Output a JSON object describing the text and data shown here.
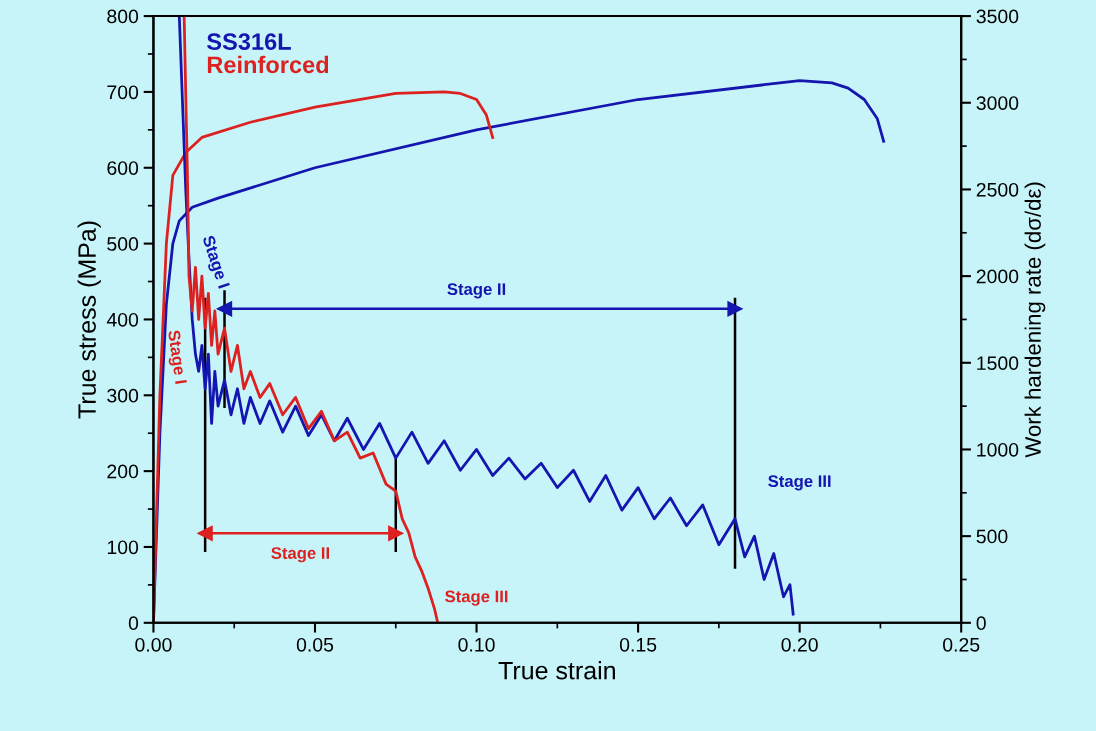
{
  "chart_data": {
    "type": "line",
    "xlabel": "True strain",
    "ylabel": "True stress (MPa)",
    "y2label": "Work hardening rate (dσ/dε)",
    "xlim": [
      0,
      0.25
    ],
    "xticks": [
      {
        "value": 0,
        "label": "0.00"
      },
      {
        "value": 0.05,
        "label": "0.05"
      },
      {
        "value": 0.1,
        "label": "0.10"
      },
      {
        "value": 0.15,
        "label": "0.15"
      },
      {
        "value": 0.2,
        "label": "0.20"
      },
      {
        "value": 0.25,
        "label": "0.25"
      }
    ],
    "ylim": [
      0,
      800
    ],
    "yticks": [
      0,
      100,
      200,
      300,
      400,
      500,
      600,
      700,
      800
    ],
    "y2lim": [
      0,
      3500
    ],
    "y2ticks": [
      0,
      500,
      1000,
      1500,
      2000,
      2500,
      3000,
      3500
    ],
    "legend": "top left",
    "grid": false,
    "series": [
      {
        "name": "SS316L",
        "color": "#1515b0",
        "x": [
          0,
          0.002,
          0.004,
          0.006,
          0.008,
          0.012,
          0.02,
          0.05,
          0.1,
          0.15,
          0.2,
          0.21,
          0.215,
          0.22,
          0.224,
          0.226
        ],
        "values": [
          0,
          250,
          420,
          500,
          530,
          548,
          560,
          600,
          650,
          690,
          715,
          712,
          705,
          690,
          665,
          635
        ]
      },
      {
        "name": "Reinforced",
        "color": "#dd2020",
        "x": [
          0,
          0.002,
          0.004,
          0.006,
          0.01,
          0.015,
          0.03,
          0.05,
          0.075,
          0.09,
          0.095,
          0.1,
          0.103,
          0.105
        ],
        "values": [
          0,
          300,
          500,
          590,
          620,
          640,
          660,
          680,
          698,
          700,
          698,
          690,
          670,
          640
        ]
      },
      {
        "axis": "y2",
        "color": "#1515b0",
        "x": [
          0.008,
          0.009,
          0.01,
          0.011,
          0.012,
          0.013,
          0.014,
          0.015,
          0.016,
          0.017,
          0.018,
          0.019,
          0.02,
          0.022,
          0.024,
          0.026,
          0.028,
          0.03,
          0.033,
          0.036,
          0.04,
          0.044,
          0.048,
          0.052,
          0.056,
          0.06,
          0.065,
          0.07,
          0.075,
          0.08,
          0.085,
          0.09,
          0.095,
          0.1,
          0.105,
          0.11,
          0.115,
          0.12,
          0.125,
          0.13,
          0.135,
          0.14,
          0.145,
          0.15,
          0.155,
          0.16,
          0.165,
          0.17,
          0.175,
          0.18,
          0.183,
          0.186,
          0.189,
          0.192,
          0.195,
          0.197,
          0.198
        ],
        "values": [
          3500,
          3000,
          2500,
          2100,
          1750,
          1550,
          1450,
          1600,
          1350,
          1550,
          1150,
          1450,
          1250,
          1400,
          1200,
          1350,
          1150,
          1300,
          1150,
          1280,
          1100,
          1250,
          1080,
          1200,
          1050,
          1180,
          1000,
          1150,
          950,
          1100,
          920,
          1050,
          880,
          1000,
          850,
          950,
          830,
          920,
          780,
          880,
          700,
          850,
          650,
          780,
          600,
          720,
          560,
          680,
          450,
          600,
          380,
          500,
          250,
          400,
          150,
          220,
          50
        ]
      },
      {
        "axis": "y2",
        "color": "#dd2020",
        "x": [
          0.0095,
          0.0105,
          0.011,
          0.012,
          0.013,
          0.014,
          0.015,
          0.016,
          0.017,
          0.018,
          0.019,
          0.02,
          0.022,
          0.024,
          0.026,
          0.028,
          0.03,
          0.033,
          0.036,
          0.04,
          0.044,
          0.048,
          0.052,
          0.056,
          0.06,
          0.064,
          0.068,
          0.072,
          0.075,
          0.077,
          0.079,
          0.081,
          0.083,
          0.085,
          0.087,
          0.088
        ],
        "values": [
          3500,
          2600,
          2000,
          1800,
          2050,
          1750,
          2000,
          1700,
          1900,
          1600,
          1800,
          1550,
          1700,
          1450,
          1600,
          1350,
          1450,
          1300,
          1380,
          1200,
          1300,
          1120,
          1220,
          1050,
          1100,
          950,
          980,
          800,
          760,
          600,
          520,
          380,
          300,
          200,
          80,
          0
        ]
      },
      {
        "color": "#000000",
        "x": [
          0.016,
          0.016
        ],
        "values": [
          95,
          427
        ]
      },
      {
        "color": "#000000",
        "x": [
          0.022,
          0.022
        ],
        "values": [
          285,
          437
        ]
      },
      {
        "color": "#000000",
        "x": [
          0.18,
          0.18
        ],
        "values": [
          73,
          427
        ]
      },
      {
        "color": "#000000",
        "x": [
          0.075,
          0.075
        ],
        "values": [
          95,
          215
        ]
      },
      {
        "color": "#1515b0",
        "x": [
          0.022,
          0.18
        ],
        "values": [
          414,
          414
        ],
        "marker": "triangle"
      },
      {
        "color": "#dd2020",
        "x": [
          0.016,
          0.075
        ],
        "values": [
          118,
          118
        ],
        "marker": "triangle"
      }
    ],
    "annotations": [
      "Stage I",
      "Stage I",
      "Stage II",
      "Stage II",
      "Stage III",
      "Stage III"
    ]
  }
}
